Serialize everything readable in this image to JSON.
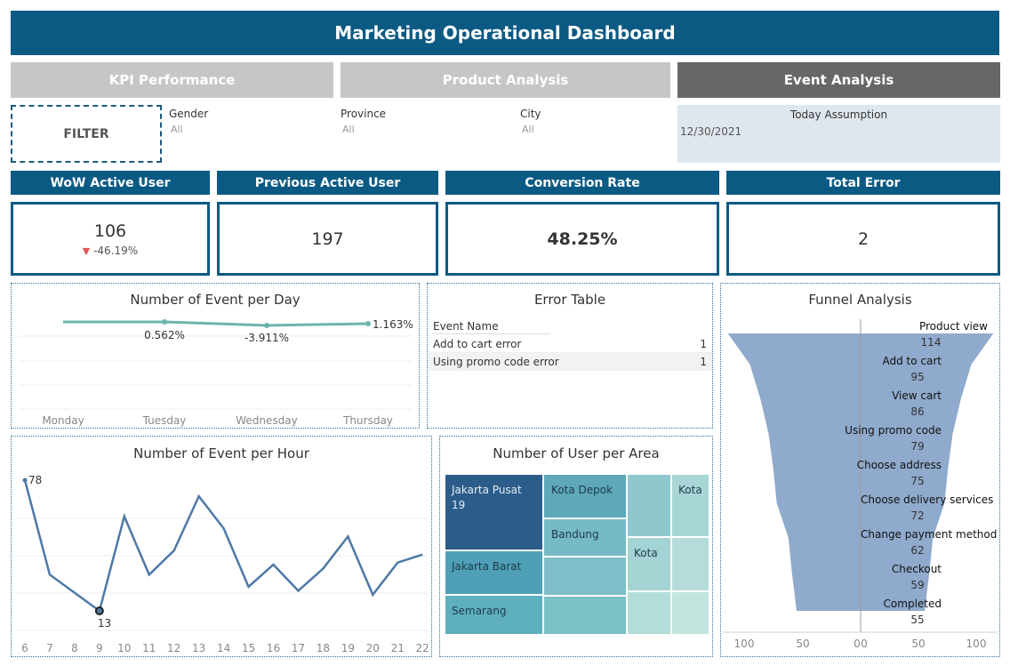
{
  "title": "Marketing Operational Dashboard",
  "tabs": [
    {
      "label": "KPI Performance"
    },
    {
      "label": "Product Analysis"
    },
    {
      "label": "Event Analysis"
    }
  ],
  "filter": {
    "button_label": "FILTER",
    "gender": {
      "label": "Gender",
      "value": "All"
    },
    "province": {
      "label": "Province",
      "value": "All"
    },
    "city": {
      "label": "City",
      "value": "All"
    },
    "today": {
      "label": "Today Assumption",
      "value": "12/30/2021"
    }
  },
  "kpis": [
    {
      "title": "WoW Active User",
      "value": "106",
      "change": "-46.19%",
      "change_icon": "down-triangle-icon"
    },
    {
      "title": "Previous Active User",
      "value": "197"
    },
    {
      "title": "Conversion Rate",
      "value": "48.25%"
    },
    {
      "title": "Total Error",
      "value": "2"
    }
  ],
  "colors": {
    "brand": "#0b5a84",
    "tab_inactive": "#c6c6c6",
    "tab_active": "#676767",
    "teal_line": "#6bb5ad",
    "hour_line": "#4e79a7",
    "funnel": "#8faacc",
    "down": "#e15759"
  },
  "event_per_day": {
    "title": "Number of Event per Day",
    "chart_data": {
      "type": "line",
      "categories": [
        "Monday",
        "Tuesday",
        "Wednesday",
        "Thursday"
      ],
      "labels": [
        "",
        "0.562%",
        "-3.911%",
        "1.163%"
      ]
    }
  },
  "error_table": {
    "title": "Error Table",
    "header": "Event Name",
    "rows": [
      {
        "name": "Add to cart error",
        "count": "1"
      },
      {
        "name": "Using promo code error",
        "count": "1"
      }
    ]
  },
  "funnel": {
    "title": "Funnel Analysis",
    "chart_data": {
      "type": "area",
      "stages": [
        "Product view",
        "Add to cart",
        "View cart",
        "Using promo code",
        "Choose address",
        "Choose delivery services",
        "Change payment method",
        "Checkout",
        "Completed"
      ],
      "values": [
        114,
        95,
        86,
        79,
        75,
        72,
        62,
        59,
        55
      ],
      "x_ticks": [
        "100",
        "50",
        "0",
        "0",
        "50",
        "100"
      ]
    }
  },
  "event_per_hour": {
    "title": "Number of Event per Hour",
    "chart_data": {
      "type": "line",
      "x": [
        6,
        7,
        8,
        9,
        10,
        11,
        12,
        13,
        14,
        15,
        16,
        17,
        18,
        19,
        20,
        21,
        22
      ],
      "x_labels": [
        "6",
        "7",
        "8",
        "9",
        "10",
        "11",
        "12",
        "13",
        "14",
        "15",
        "16",
        "17",
        "18",
        "19",
        "20",
        "21",
        "22"
      ],
      "values": [
        78,
        31,
        22,
        13,
        60,
        31,
        43,
        70,
        54,
        25,
        36,
        23,
        34,
        50,
        21,
        37,
        41
      ],
      "max_label": "78",
      "min_label": "13"
    }
  },
  "user_per_area": {
    "title": "Number of User per Area",
    "tiles": [
      {
        "label": "Jakarta Pusat",
        "value": "19"
      },
      {
        "label": "Kota Depok"
      },
      {
        "label": "Kota"
      },
      {
        "label": "Bandung"
      },
      {
        "label": "Jakarta Barat"
      },
      {
        "label": "Kota"
      },
      {
        "label": "Semarang"
      }
    ]
  }
}
